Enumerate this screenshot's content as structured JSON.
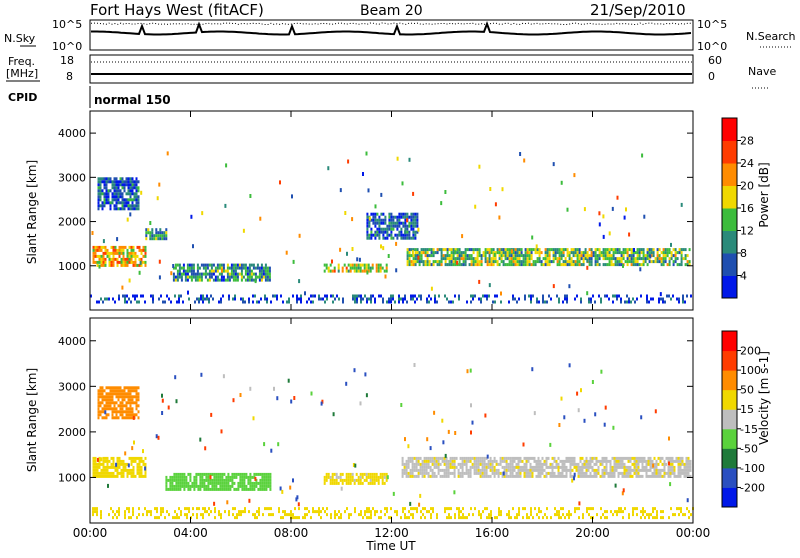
{
  "header": {
    "station": "Fort Hays West (fitACF)",
    "beam": "Beam 20",
    "date": "21/Sep/2010"
  },
  "top_panels": {
    "nsky_label": "N.Sky",
    "nsky_ticks": [
      "10^5",
      "10^0"
    ],
    "nsearch_label": "N.Search",
    "nsearch_ticks": [
      "10^5",
      "10^0"
    ],
    "freq_label": "Freq.",
    "freq_unit": "[MHz]",
    "freq_ticks": [
      "18",
      "8"
    ],
    "nave_label": "Nave",
    "nave_ticks": [
      "60",
      "0"
    ],
    "cpid_label": "CPID",
    "cpid_value": "normal 150"
  },
  "chart_data": [
    {
      "type": "heatmap",
      "name": "power",
      "xlabel": "",
      "ylabel": "Slant Range [km]",
      "ylim": [
        0,
        4500
      ],
      "yticks": [
        1000,
        2000,
        3000,
        4000
      ],
      "xlim": [
        0,
        24
      ],
      "colorbar": {
        "label": "Power [dB]",
        "ticks": [
          "4",
          "8",
          "12",
          "16",
          "20",
          "24",
          "28"
        ],
        "colors": [
          "#0018e8",
          "#1f4fb0",
          "#2a8a7a",
          "#3cbc3c",
          "#f0d800",
          "#ff8c00",
          "#ff3c00",
          "#ff0000"
        ]
      },
      "echo_regions": [
        {
          "t0": 0.1,
          "t1": 2.2,
          "r0": 1000,
          "r1": 1450,
          "level": 20
        },
        {
          "t0": 0.3,
          "t1": 1.9,
          "r0": 2300,
          "r1": 3000,
          "level": 6
        },
        {
          "t0": 2.2,
          "t1": 3.0,
          "r0": 1600,
          "r1": 1850,
          "level": 12
        },
        {
          "t0": 3.3,
          "t1": 7.2,
          "r0": 700,
          "r1": 1050,
          "level": 10
        },
        {
          "t0": 9.3,
          "t1": 11.8,
          "r0": 900,
          "r1": 1050,
          "level": 18
        },
        {
          "t0": 11.0,
          "t1": 13.0,
          "r0": 1600,
          "r1": 2200,
          "level": 6
        },
        {
          "t0": 12.6,
          "t1": 23.9,
          "r0": 1000,
          "r1": 1400,
          "level": 14
        },
        {
          "t0": 0.0,
          "t1": 24.0,
          "r0": 150,
          "r1": 350,
          "level": 4
        }
      ]
    },
    {
      "type": "heatmap",
      "name": "velocity",
      "xlabel": "Time UT",
      "ylabel": "Slant Range [km]",
      "ylim": [
        0,
        4500
      ],
      "yticks": [
        1000,
        2000,
        3000,
        4000
      ],
      "xlim": [
        0,
        24
      ],
      "xticks": [
        "00:00",
        "04:00",
        "08:00",
        "12:00",
        "16:00",
        "20:00",
        "00:00"
      ],
      "colorbar": {
        "label": "Velocity [m s-1]",
        "ticks": [
          "200",
          "100",
          "50",
          "15",
          "-15",
          "-50",
          "-100",
          "-200"
        ],
        "colors": [
          "#0018e8",
          "#2a4fc0",
          "#1f7a3a",
          "#5ad23c",
          "#bebebe",
          "#f0d800",
          "#ff8c00",
          "#ff3c00",
          "#ff0000"
        ]
      },
      "echo_regions": [
        {
          "t0": 0.1,
          "t1": 2.2,
          "r0": 1000,
          "r1": 1450,
          "level": -40
        },
        {
          "t0": 0.3,
          "t1": 1.9,
          "r0": 2300,
          "r1": 3000,
          "level": -80
        },
        {
          "t0": 3.0,
          "t1": 7.2,
          "r0": 750,
          "r1": 1100,
          "level": 30
        },
        {
          "t0": 9.3,
          "t1": 11.8,
          "r0": 900,
          "r1": 1100,
          "level": -20
        },
        {
          "t0": 12.4,
          "t1": 23.9,
          "r0": 1000,
          "r1": 1450,
          "level": -10
        },
        {
          "t0": 0.0,
          "t1": 24.0,
          "r0": 150,
          "r1": 350,
          "level": -30
        }
      ]
    }
  ]
}
